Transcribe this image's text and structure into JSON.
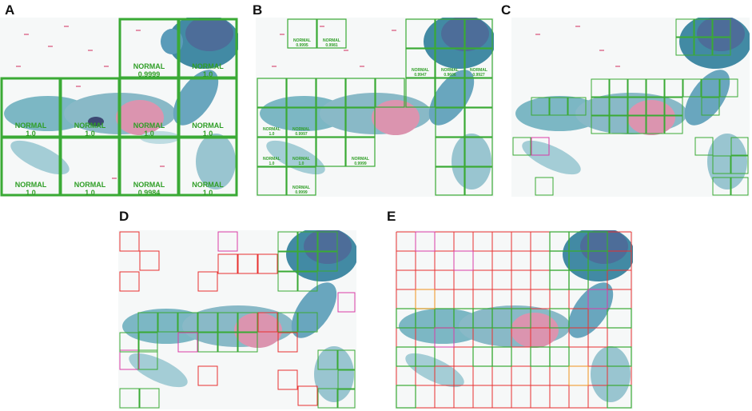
{
  "figure": {
    "panels": [
      {
        "label": "A",
        "tiles": [
          {
            "text": "NORMAL",
            "score": "0.9999"
          },
          {
            "text": "NORMAL",
            "score": "1.0"
          },
          {
            "text": "NORMAL",
            "score": "1.0"
          },
          {
            "text": "NORMAL",
            "score": "1.0"
          },
          {
            "text": "NORMAL",
            "score": "1.0"
          },
          {
            "text": "NORMAL",
            "score": "1.0"
          },
          {
            "text": "NORMAL",
            "score": "1.0"
          },
          {
            "text": "NORMAL",
            "score": "1.0"
          },
          {
            "text": "NORMAL",
            "score": "0.9984"
          },
          {
            "text": "NORMAL",
            "score": "1.0"
          }
        ]
      },
      {
        "label": "B",
        "tiles": [
          {
            "text": "NORMAL",
            "score": "0.9995"
          },
          {
            "text": "NORMAL",
            "score": "0.9981"
          },
          {
            "text": "NORMAL",
            "score": "0.9947"
          },
          {
            "text": "NORMAL",
            "score": "0.9606"
          },
          {
            "text": "NORMAL",
            "score": "0.9927"
          },
          {
            "text": "NORMAL",
            "score": "1.0"
          },
          {
            "text": "NORMAL",
            "score": "0.9997"
          },
          {
            "text": "NORMAL",
            "score": "1.0"
          },
          {
            "text": "NORMAL",
            "score": "1.0"
          },
          {
            "text": "NORMAL",
            "score": "0.9999"
          },
          {
            "text": "NORMAL",
            "score": "0.9999"
          }
        ]
      },
      {
        "label": "C"
      },
      {
        "label": "D"
      },
      {
        "label": "E"
      }
    ],
    "colors": {
      "normal_box": "#3aaa35",
      "grade_box": "#e8312f",
      "grade2_box": "#d93ca6",
      "grade_orange": "#f0921d",
      "normal_text": "#2f9e26"
    }
  }
}
